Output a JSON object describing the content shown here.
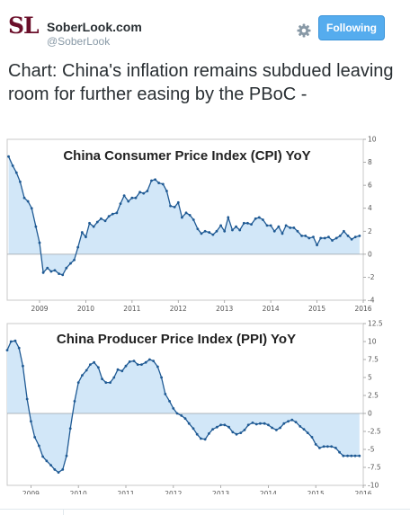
{
  "header": {
    "logo_text": "SL",
    "account_name": "SoberLook.com",
    "handle": "@SoberLook",
    "follow_label": "Following",
    "gear_icon": "gear-icon"
  },
  "tweet": {
    "text": "Chart: China's inflation remains subdued leaving room for further easing by the PBoC -"
  },
  "colors": {
    "line": "#1f5a94",
    "fill": "#d2e7f8",
    "follow": "#55acee",
    "logo": "#6b0f2a"
  },
  "chart_data": [
    {
      "type": "area",
      "title": "China Consumer Price Index (CPI) YoY",
      "xlabel": "",
      "ylabel": "",
      "xlim": [
        2008.3,
        2016.0
      ],
      "ylim": [
        -4,
        10
      ],
      "y_ticks": [
        10,
        8,
        6,
        4,
        2,
        0,
        -2,
        -4
      ],
      "x_tick_labels": [
        "2009",
        "2010",
        "2011",
        "2012",
        "2013",
        "2014",
        "2015",
        "2016"
      ],
      "grid": false,
      "series": [
        {
          "x": [
            2008.33,
            2008.42,
            2008.5,
            2008.58,
            2008.67,
            2008.75,
            2008.83,
            2008.92,
            2009.0,
            2009.08,
            2009.17,
            2009.25,
            2009.33,
            2009.42,
            2009.5,
            2009.58,
            2009.67,
            2009.75,
            2009.83,
            2009.92,
            2010.0,
            2010.08,
            2010.17,
            2010.25,
            2010.33,
            2010.42,
            2010.5,
            2010.58,
            2010.67,
            2010.75,
            2010.83,
            2010.92,
            2011.0,
            2011.08,
            2011.17,
            2011.25,
            2011.33,
            2011.42,
            2011.5,
            2011.58,
            2011.67,
            2011.75,
            2011.83,
            2011.92,
            2012.0,
            2012.08,
            2012.17,
            2012.25,
            2012.33,
            2012.42,
            2012.5,
            2012.58,
            2012.67,
            2012.75,
            2012.83,
            2012.92,
            2013.0,
            2013.08,
            2013.17,
            2013.25,
            2013.33,
            2013.42,
            2013.5,
            2013.58,
            2013.67,
            2013.75,
            2013.83,
            2013.92,
            2014.0,
            2014.08,
            2014.17,
            2014.25,
            2014.33,
            2014.42,
            2014.5,
            2014.58,
            2014.67,
            2014.75,
            2014.83,
            2014.92,
            2015.0,
            2015.08,
            2015.17,
            2015.25,
            2015.33,
            2015.42,
            2015.5,
            2015.58,
            2015.67,
            2015.75,
            2015.83,
            2015.92
          ],
          "values": [
            8.5,
            7.7,
            7.1,
            6.3,
            4.9,
            4.6,
            4.0,
            2.4,
            1.0,
            -1.6,
            -1.2,
            -1.5,
            -1.4,
            -1.7,
            -1.8,
            -1.2,
            -0.8,
            -0.5,
            0.6,
            1.9,
            1.5,
            2.7,
            2.4,
            2.8,
            3.1,
            2.9,
            3.3,
            3.5,
            3.6,
            4.4,
            5.1,
            4.6,
            4.9,
            4.9,
            5.4,
            5.3,
            5.5,
            6.4,
            6.5,
            6.2,
            6.1,
            5.5,
            4.2,
            4.1,
            4.5,
            3.2,
            3.6,
            3.4,
            3.0,
            2.2,
            1.8,
            2.0,
            1.9,
            1.7,
            2.0,
            2.5,
            2.0,
            3.2,
            2.1,
            2.4,
            2.1,
            2.7,
            2.7,
            2.6,
            3.1,
            3.2,
            3.0,
            2.5,
            2.5,
            2.0,
            2.4,
            1.8,
            2.5,
            2.3,
            2.3,
            2.0,
            1.6,
            1.6,
            1.4,
            1.5,
            0.8,
            1.4,
            1.4,
            1.5,
            1.2,
            1.4,
            1.6,
            2.0,
            1.6,
            1.3,
            1.5,
            1.6
          ]
        }
      ]
    },
    {
      "type": "area",
      "title": "China Producer Price Index (PPI) YoY",
      "xlabel": "",
      "ylabel": "",
      "xlim": [
        2008.5,
        2016.0
      ],
      "ylim": [
        -10,
        12.5
      ],
      "y_ticks": [
        12.5,
        10,
        7.5,
        5,
        2.5,
        0,
        -2.5,
        -5,
        -7.5,
        -10
      ],
      "x_tick_labels": [
        "2009",
        "2010",
        "2011",
        "2012",
        "2013",
        "2014",
        "2015",
        "2016"
      ],
      "grid": false,
      "series": [
        {
          "x": [
            2008.5,
            2008.58,
            2008.67,
            2008.75,
            2008.83,
            2008.92,
            2009.0,
            2009.08,
            2009.17,
            2009.25,
            2009.33,
            2009.42,
            2009.5,
            2009.58,
            2009.67,
            2009.75,
            2009.83,
            2009.92,
            2010.0,
            2010.08,
            2010.17,
            2010.25,
            2010.33,
            2010.42,
            2010.5,
            2010.58,
            2010.67,
            2010.75,
            2010.83,
            2010.92,
            2011.0,
            2011.08,
            2011.17,
            2011.25,
            2011.33,
            2011.42,
            2011.5,
            2011.58,
            2011.67,
            2011.75,
            2011.83,
            2011.92,
            2012.0,
            2012.08,
            2012.17,
            2012.25,
            2012.33,
            2012.42,
            2012.5,
            2012.58,
            2012.67,
            2012.75,
            2012.83,
            2012.92,
            2013.0,
            2013.08,
            2013.17,
            2013.25,
            2013.33,
            2013.42,
            2013.5,
            2013.58,
            2013.67,
            2013.75,
            2013.83,
            2013.92,
            2014.0,
            2014.08,
            2014.17,
            2014.25,
            2014.33,
            2014.42,
            2014.5,
            2014.58,
            2014.67,
            2014.75,
            2014.83,
            2014.92,
            2015.0,
            2015.08,
            2015.17,
            2015.25,
            2015.33,
            2015.42,
            2015.5,
            2015.58,
            2015.67,
            2015.75,
            2015.83,
            2015.92
          ],
          "values": [
            8.8,
            10.0,
            10.1,
            9.1,
            6.6,
            2.0,
            -1.1,
            -3.3,
            -4.5,
            -6.0,
            -6.6,
            -7.2,
            -7.8,
            -8.2,
            -7.8,
            -5.9,
            -2.1,
            1.7,
            4.3,
            5.3,
            6.0,
            6.8,
            7.1,
            6.4,
            4.8,
            4.3,
            4.3,
            5.0,
            6.1,
            5.9,
            6.6,
            7.2,
            7.3,
            6.8,
            6.8,
            7.1,
            7.5,
            7.3,
            6.5,
            5.0,
            2.7,
            1.7,
            0.7,
            0.0,
            -0.3,
            -0.7,
            -1.4,
            -2.1,
            -2.9,
            -3.5,
            -3.6,
            -2.8,
            -2.2,
            -1.9,
            -1.6,
            -1.6,
            -1.9,
            -2.6,
            -2.9,
            -2.7,
            -2.3,
            -1.6,
            -1.3,
            -1.5,
            -1.4,
            -1.4,
            -1.6,
            -2.0,
            -2.3,
            -2.0,
            -1.4,
            -1.1,
            -0.9,
            -1.2,
            -1.8,
            -2.2,
            -2.7,
            -3.3,
            -4.3,
            -4.8,
            -4.6,
            -4.6,
            -4.6,
            -4.8,
            -5.4,
            -5.9,
            -5.9,
            -5.9,
            -5.9,
            -5.9
          ]
        }
      ]
    }
  ]
}
